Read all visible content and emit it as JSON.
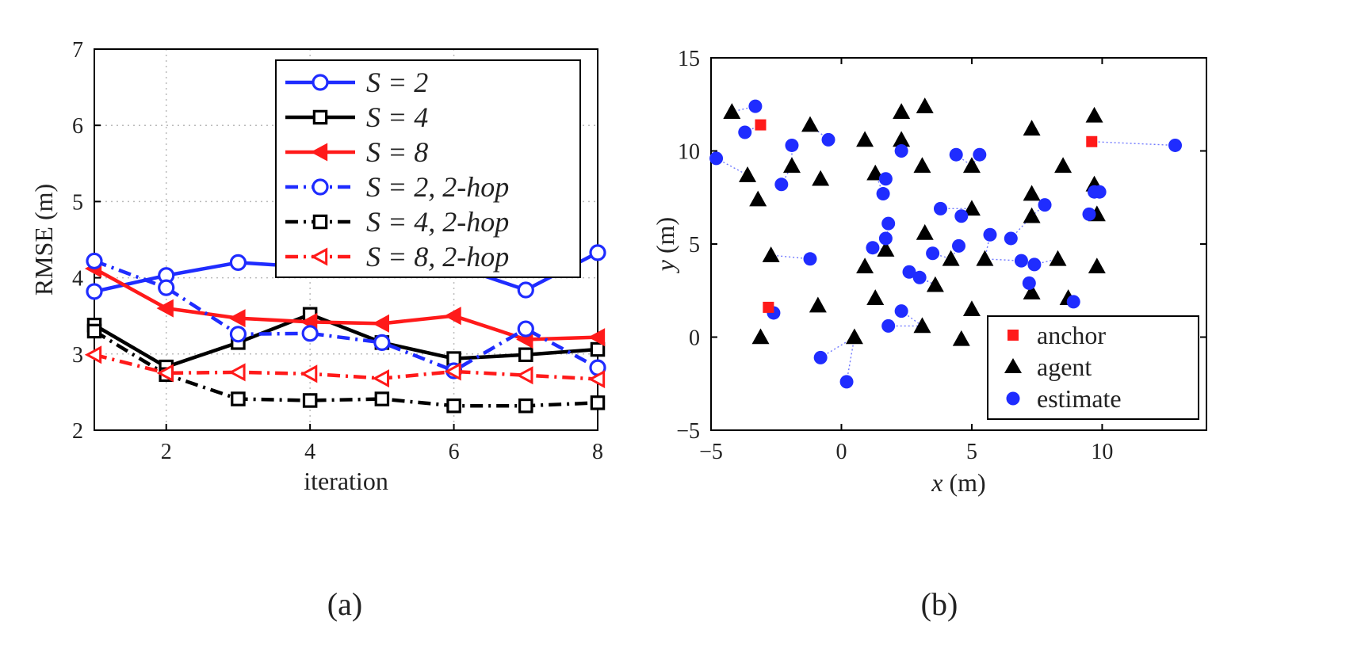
{
  "chart_data": [
    {
      "type": "line",
      "caption": "(a)",
      "xlabel": "iteration",
      "ylabel": "RMSE (m)",
      "xlim": [
        1,
        8
      ],
      "ylim": [
        2,
        7
      ],
      "x_ticks": [
        2,
        4,
        6,
        8
      ],
      "y_ticks": [
        2,
        3,
        4,
        5,
        6,
        7
      ],
      "grid": true,
      "legend_position": "top-right",
      "x": [
        1,
        2,
        3,
        4,
        5,
        6,
        7,
        8
      ],
      "series": [
        {
          "name": "S = 2",
          "color": "#1f2cff",
          "style": "solid",
          "marker": "circle",
          "values": [
            3.82,
            4.03,
            4.2,
            4.14,
            4.25,
            4.16,
            3.84,
            4.33
          ]
        },
        {
          "name": "S = 4",
          "color": "#000000",
          "style": "solid",
          "marker": "square",
          "values": [
            3.38,
            2.83,
            3.15,
            3.52,
            3.15,
            2.94,
            2.99,
            3.06
          ]
        },
        {
          "name": "S = 8",
          "color": "#ff1a1a",
          "style": "solid",
          "marker": "triangle-left",
          "values": [
            4.12,
            3.6,
            3.47,
            3.42,
            3.4,
            3.5,
            3.19,
            3.22
          ]
        },
        {
          "name": "S = 2, 2-hop",
          "color": "#1f2cff",
          "style": "dashdot",
          "marker": "circle-open",
          "values": [
            4.22,
            3.87,
            3.26,
            3.27,
            3.15,
            2.78,
            3.33,
            2.82
          ]
        },
        {
          "name": "S = 4, 2-hop",
          "color": "#000000",
          "style": "dashdot",
          "marker": "square-open",
          "values": [
            3.3,
            2.73,
            2.41,
            2.39,
            2.41,
            2.32,
            2.32,
            2.36
          ]
        },
        {
          "name": "S = 8, 2-hop",
          "color": "#ff1a1a",
          "style": "dashdot",
          "marker": "triangle-left-open",
          "values": [
            2.99,
            2.75,
            2.76,
            2.74,
            2.68,
            2.77,
            2.72,
            2.67
          ]
        }
      ]
    },
    {
      "type": "scatter",
      "caption": "(b)",
      "xlabel_var": "x",
      "xlabel_unit": "(m)",
      "ylabel_var": "y",
      "ylabel_unit": "(m)",
      "xlim": [
        -5,
        14
      ],
      "ylim": [
        -5,
        15
      ],
      "x_ticks": [
        -5,
        0,
        5,
        10
      ],
      "y_ticks": [
        -5,
        0,
        5,
        10,
        15
      ],
      "x_tick_labels": [
        "−5",
        "0",
        "5",
        "10"
      ],
      "y_tick_labels": [
        "−5",
        "0",
        "5",
        "10",
        "15"
      ],
      "legend_position": "bottom-right",
      "legend": [
        {
          "label": "anchor",
          "color": "#ff1a1a",
          "marker": "square"
        },
        {
          "label": "agent",
          "color": "#000000",
          "marker": "triangle"
        },
        {
          "label": "estimate",
          "color": "#1f2cff",
          "marker": "circle"
        }
      ],
      "anchors": [
        [
          -3.1,
          11.4
        ],
        [
          -2.8,
          1.6
        ],
        [
          9.6,
          10.5
        ]
      ],
      "agents": [
        [
          -4.2,
          12.1
        ],
        [
          -3.6,
          8.7
        ],
        [
          -3.2,
          7.4
        ],
        [
          -2.7,
          4.4
        ],
        [
          -3.1,
          0.0
        ],
        [
          -1.2,
          11.4
        ],
        [
          -1.9,
          9.2
        ],
        [
          -0.8,
          8.5
        ],
        [
          -0.9,
          1.7
        ],
        [
          0.5,
          0.0
        ],
        [
          0.9,
          10.6
        ],
        [
          1.3,
          8.8
        ],
        [
          0.9,
          3.8
        ],
        [
          1.3,
          2.1
        ],
        [
          1.7,
          4.7
        ],
        [
          2.3,
          12.1
        ],
        [
          2.3,
          10.6
        ],
        [
          3.2,
          12.4
        ],
        [
          3.1,
          9.2
        ],
        [
          3.2,
          5.6
        ],
        [
          3.1,
          0.6
        ],
        [
          3.6,
          2.8
        ],
        [
          4.2,
          4.2
        ],
        [
          4.6,
          -0.1
        ],
        [
          5.0,
          9.2
        ],
        [
          5.0,
          6.9
        ],
        [
          5.0,
          1.5
        ],
        [
          5.5,
          4.2
        ],
        [
          7.3,
          11.2
        ],
        [
          7.3,
          7.7
        ],
        [
          7.3,
          6.5
        ],
        [
          7.3,
          2.4
        ],
        [
          8.3,
          4.2
        ],
        [
          8.5,
          9.2
        ],
        [
          8.7,
          2.1
        ],
        [
          9.7,
          11.9
        ],
        [
          9.7,
          8.2
        ],
        [
          9.8,
          6.6
        ],
        [
          9.8,
          3.8
        ]
      ],
      "estimates": [
        [
          -4.8,
          9.6
        ],
        [
          -3.3,
          12.4
        ],
        [
          -3.7,
          11.0
        ],
        [
          -2.3,
          8.2
        ],
        [
          -1.9,
          10.3
        ],
        [
          -1.2,
          4.2
        ],
        [
          -0.5,
          10.6
        ],
        [
          -2.6,
          1.3
        ],
        [
          -0.8,
          -1.1
        ],
        [
          0.2,
          -2.4
        ],
        [
          1.6,
          7.7
        ],
        [
          1.7,
          8.5
        ],
        [
          1.8,
          6.1
        ],
        [
          1.7,
          5.3
        ],
        [
          1.2,
          4.8
        ],
        [
          2.3,
          10.0
        ],
        [
          2.6,
          3.5
        ],
        [
          3.0,
          3.2
        ],
        [
          3.5,
          4.5
        ],
        [
          2.3,
          1.4
        ],
        [
          1.8,
          0.6
        ],
        [
          3.8,
          6.9
        ],
        [
          4.4,
          9.8
        ],
        [
          4.6,
          6.5
        ],
        [
          4.5,
          4.9
        ],
        [
          5.3,
          9.8
        ],
        [
          5.7,
          5.5
        ],
        [
          6.5,
          5.3
        ],
        [
          6.9,
          4.1
        ],
        [
          7.4,
          3.9
        ],
        [
          7.2,
          2.9
        ],
        [
          7.8,
          7.1
        ],
        [
          9.5,
          6.6
        ],
        [
          9.9,
          7.8
        ],
        [
          9.7,
          7.8
        ],
        [
          8.9,
          1.9
        ],
        [
          12.8,
          10.3
        ]
      ]
    }
  ]
}
